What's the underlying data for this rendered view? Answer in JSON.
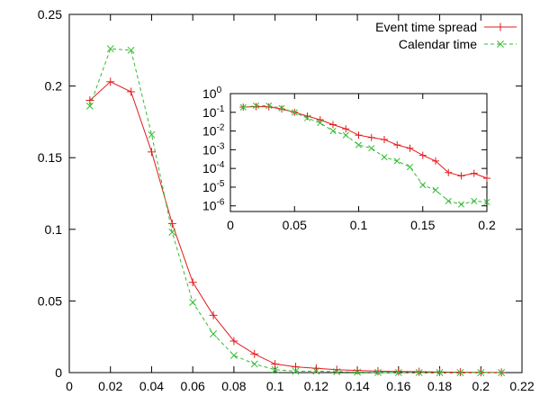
{
  "chart_data": [
    {
      "type": "line",
      "title": "",
      "xlabel": "",
      "ylabel": "",
      "xlim": [
        0,
        0.22
      ],
      "ylim": [
        0,
        0.25
      ],
      "xticks": [
        "0",
        "0.02",
        "0.04",
        "0.06",
        "0.08",
        "0.1",
        "0.12",
        "0.14",
        "0.16",
        "0.18",
        "0.2",
        "0.22"
      ],
      "yticks": [
        "0",
        "0.05",
        "0.1",
        "0.15",
        "0.2",
        "0.25"
      ],
      "legend_position": "top-right",
      "grid": false,
      "x": [
        0.01,
        0.02,
        0.03,
        0.04,
        0.05,
        0.06,
        0.07,
        0.08,
        0.09,
        0.1,
        0.11,
        0.12,
        0.13,
        0.14,
        0.15,
        0.16,
        0.17,
        0.18,
        0.19,
        0.2,
        0.21
      ],
      "series": [
        {
          "name": "Event time spread",
          "color": "#e41a1c",
          "marker": "plus",
          "dash": "solid",
          "values": [
            0.19,
            0.203,
            0.196,
            0.154,
            0.104,
            0.063,
            0.04,
            0.022,
            0.013,
            0.006,
            0.004,
            0.003,
            0.002,
            0.0015,
            0.001,
            0.0008,
            0.0006,
            0.0004,
            0.0003,
            0.0002,
            0.0001
          ]
        },
        {
          "name": "Calendar time",
          "color": "#33bb33",
          "marker": "x",
          "dash": "dashed",
          "values": [
            0.186,
            0.226,
            0.225,
            0.166,
            0.098,
            0.049,
            0.027,
            0.012,
            0.006,
            0.002,
            0.001,
            0.001,
            0.0006,
            0.0003,
            0.0001,
            5e-05,
            2e-05,
            1e-05,
            5e-06,
            2e-06,
            1e-06
          ]
        }
      ]
    },
    {
      "type": "line",
      "title": "",
      "xlabel": "",
      "ylabel": "",
      "yscale": "log",
      "xlim": [
        0,
        0.2
      ],
      "ylim": [
        5e-07,
        1
      ],
      "xticks": [
        "0",
        "0.05",
        "0.1",
        "0.15",
        "0.2"
      ],
      "yticks": [
        {
          "base": "10",
          "exp": "0"
        },
        {
          "base": "10",
          "exp": "-1"
        },
        {
          "base": "10",
          "exp": "-2"
        },
        {
          "base": "10",
          "exp": "-3"
        },
        {
          "base": "10",
          "exp": "-4"
        },
        {
          "base": "10",
          "exp": "-5"
        },
        {
          "base": "10",
          "exp": "-6"
        }
      ],
      "x": [
        0.01,
        0.02,
        0.03,
        0.04,
        0.05,
        0.06,
        0.07,
        0.08,
        0.09,
        0.1,
        0.11,
        0.12,
        0.13,
        0.14,
        0.15,
        0.16,
        0.17,
        0.18,
        0.19,
        0.2
      ],
      "series": [
        {
          "name": "Event time spread",
          "color": "#e41a1c",
          "marker": "plus",
          "dash": "solid",
          "values": [
            0.19,
            0.2,
            0.196,
            0.15,
            0.1,
            0.063,
            0.04,
            0.022,
            0.013,
            0.006,
            0.0045,
            0.0035,
            0.0018,
            0.0012,
            0.0005,
            0.00025,
            6e-05,
            4e-05,
            5.5e-05,
            3e-05
          ]
        },
        {
          "name": "Calendar time",
          "color": "#33bb33",
          "marker": "x",
          "dash": "dashed",
          "values": [
            0.186,
            0.226,
            0.225,
            0.166,
            0.098,
            0.049,
            0.027,
            0.01,
            0.006,
            0.0018,
            0.0012,
            0.0004,
            0.00025,
            0.00012,
            1.3e-05,
            7e-06,
            1.8e-06,
            1.2e-06,
            1.8e-06,
            1.6e-06
          ]
        }
      ]
    }
  ]
}
